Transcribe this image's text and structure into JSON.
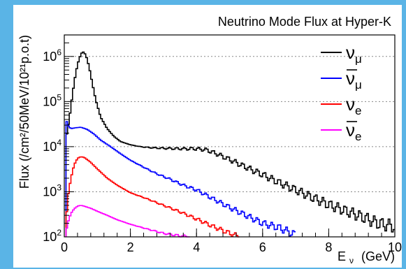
{
  "chart_data": {
    "type": "line",
    "title": "Neutrino Mode Flux at Hyper-K",
    "xlabel": "E",
    "xlabel_sub": "ν",
    "xlabel_unit": "(GeV)",
    "ylabel": "Flux (/cm²/50MeV/10²¹p.o.t)",
    "x_scale": "linear",
    "y_scale": "log",
    "xlim": [
      0,
      10
    ],
    "ylim": [
      100,
      3000000
    ],
    "x_ticks": [
      "0",
      "2",
      "4",
      "6",
      "8",
      "10"
    ],
    "y_ticks": [
      {
        "base": "10",
        "exp": "2"
      },
      {
        "base": "10",
        "exp": "3"
      },
      {
        "base": "10",
        "exp": "4"
      },
      {
        "base": "10",
        "exp": "5"
      },
      {
        "base": "10",
        "exp": "6"
      }
    ],
    "grid": "horizontal-dotted",
    "legend_position": "top-right",
    "series": [
      {
        "name": "ν_μ",
        "base": "ν",
        "bar": false,
        "sub": "μ",
        "color": "#000000",
        "x": [
          0.05,
          0.15,
          0.25,
          0.35,
          0.45,
          0.55,
          0.65,
          0.75,
          0.85,
          0.95,
          1.1,
          1.3,
          1.5,
          1.7,
          2.0,
          2.3,
          2.6,
          3.0,
          3.5,
          4.0,
          4.3,
          4.6,
          5.0,
          5.5,
          6.0,
          6.5,
          7.0,
          7.5,
          8.0,
          8.5,
          9.0,
          9.5,
          10.0
        ],
        "y": [
          15000,
          40000,
          150000,
          450000,
          900000,
          1300000,
          1100000,
          600000,
          250000,
          110000,
          45000,
          25000,
          17000,
          13000,
          11000,
          10000,
          9500,
          9200,
          9000,
          9000,
          8500,
          7000,
          5200,
          3500,
          2400,
          1600,
          1100,
          750,
          520,
          380,
          280,
          200,
          170
        ]
      },
      {
        "name": "ν̄_μ",
        "base": "ν",
        "bar": true,
        "sub": "μ",
        "color": "#0000ff",
        "x": [
          0.03,
          0.1,
          0.2,
          0.3,
          0.5,
          0.7,
          0.9,
          1.1,
          1.4,
          1.7,
          2.0,
          2.4,
          2.8,
          3.2,
          3.6,
          4.0,
          4.5,
          5.0,
          5.5,
          6.0,
          6.5,
          7.0
        ],
        "y": [
          50000,
          30000,
          25000,
          26000,
          27000,
          24000,
          19000,
          14000,
          10000,
          7000,
          5000,
          3500,
          2500,
          1900,
          1400,
          1100,
          700,
          450,
          300,
          200,
          160,
          110
        ]
      },
      {
        "name": "ν_e",
        "base": "ν",
        "bar": false,
        "sub": "e",
        "color": "#ff0000",
        "x": [
          0.03,
          0.1,
          0.2,
          0.3,
          0.4,
          0.5,
          0.6,
          0.8,
          1.0,
          1.3,
          1.6,
          2.0,
          2.5,
          3.0,
          3.5,
          4.0,
          4.5,
          5.0,
          5.3
        ],
        "y": [
          110,
          700,
          2000,
          4000,
          5500,
          6000,
          5800,
          4500,
          3200,
          2000,
          1400,
          950,
          700,
          500,
          360,
          250,
          170,
          120,
          100
        ]
      },
      {
        "name": "ν̄_e",
        "base": "ν",
        "bar": true,
        "sub": "e",
        "color": "#ff00ff",
        "x": [
          0.03,
          0.1,
          0.2,
          0.3,
          0.4,
          0.5,
          0.6,
          0.8,
          1.0,
          1.3,
          1.6,
          2.0,
          2.5,
          3.0,
          3.5,
          3.8
        ],
        "y": [
          100,
          200,
          330,
          420,
          480,
          500,
          480,
          430,
          370,
          300,
          240,
          190,
          150,
          120,
          105,
          100
        ]
      }
    ]
  }
}
